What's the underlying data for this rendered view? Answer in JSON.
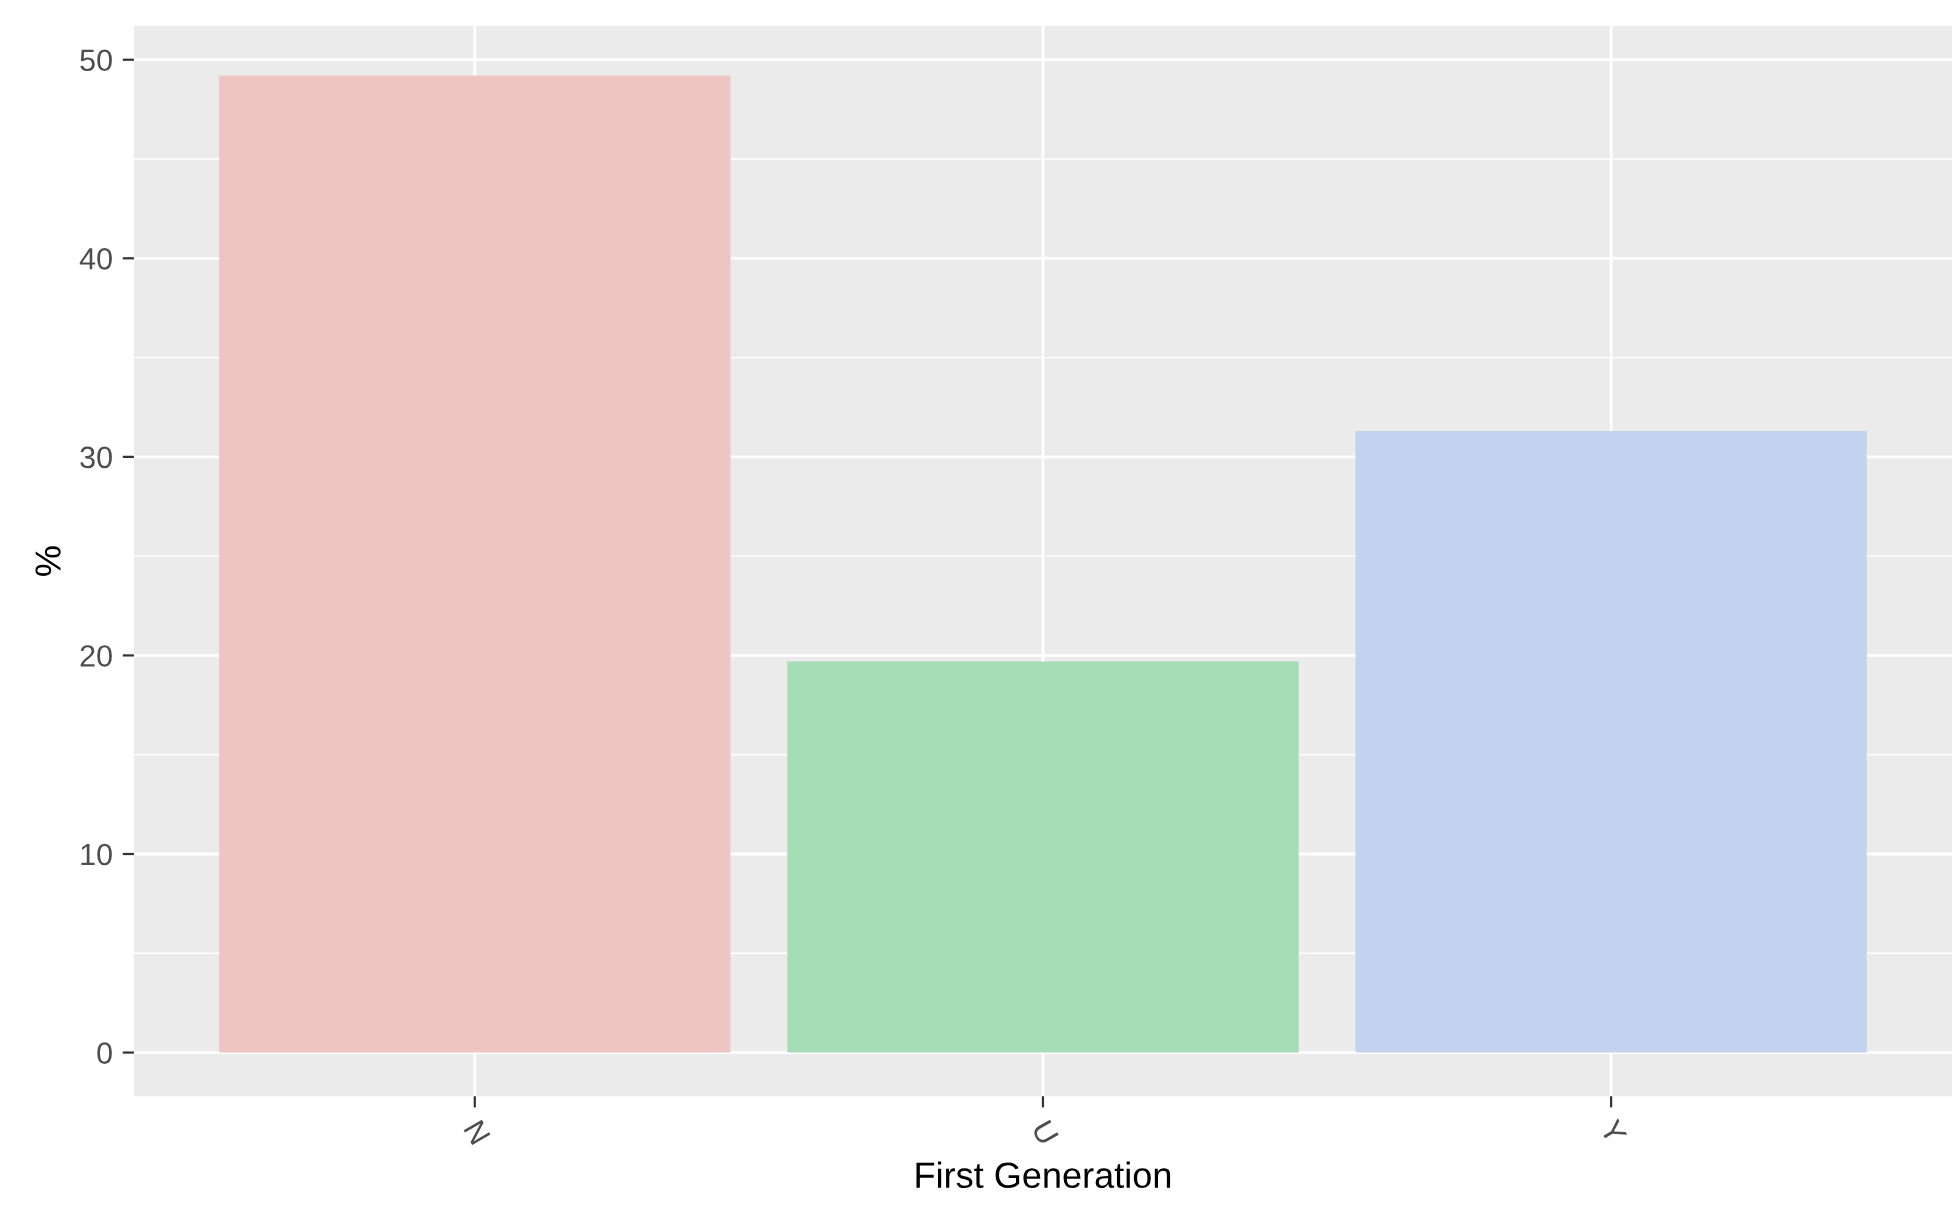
{
  "chart_data": {
    "type": "bar",
    "xlabel": "First Generation",
    "ylabel": "%",
    "categories": [
      "N",
      "U",
      "Y"
    ],
    "values": [
      49.2,
      19.7,
      31.3
    ],
    "colors": [
      "#efc5c4",
      "#a6dcb5",
      "#c2d3f0"
    ],
    "ylim": [
      -2.2,
      51.7
    ],
    "yticks": [
      0,
      10,
      20,
      30,
      40,
      50
    ],
    "grid": true,
    "legend": false
  }
}
